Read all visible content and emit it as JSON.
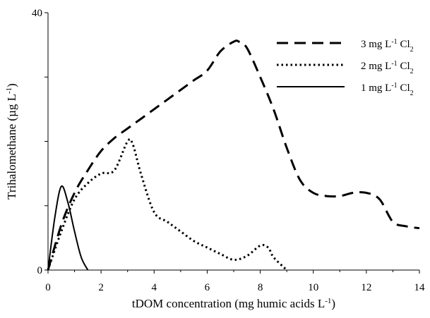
{
  "chart_data": {
    "type": "line",
    "xlabel": "tDOM concentration (mg humic acids L",
    "xlabel_sup": "-1",
    "xlabel_tail": ")",
    "ylabel": "Trihalomethane (µg L",
    "ylabel_sup": "-1",
    "ylabel_tail": ")",
    "xlim": [
      0,
      14
    ],
    "ylim": [
      0,
      40
    ],
    "x_ticks": [
      0,
      2,
      4,
      6,
      8,
      10,
      12,
      14
    ],
    "y_ticks": [
      0,
      40
    ],
    "grid": false,
    "legend_position": "top-right",
    "series": [
      {
        "name": "3 mg L-1 Cl2",
        "legend": {
          "pre": "3 mg L",
          "sup": "-1",
          "mid": " Cl",
          "sub": "2"
        },
        "style": "dashed",
        "x": [
          0,
          0.5,
          1,
          1.5,
          2,
          2.5,
          3,
          3.5,
          4,
          4.5,
          5,
          5.5,
          6,
          6.5,
          7,
          7.2,
          7.5,
          8,
          8.5,
          9,
          9.5,
          10,
          10.5,
          11,
          11.5,
          12,
          12.5,
          13,
          13.5,
          14
        ],
        "y": [
          0,
          7,
          12,
          15.5,
          18.5,
          20.5,
          22,
          23.5,
          25,
          26.5,
          28,
          29.5,
          31,
          34,
          35.5,
          35.5,
          34.5,
          30,
          25,
          19,
          14,
          12,
          11.5,
          11.5,
          12,
          12,
          11,
          7.5,
          6.8,
          6.5
        ]
      },
      {
        "name": "2 mg L-1 Cl2",
        "legend": {
          "pre": "2 mg L",
          "sup": "-1",
          "mid": " Cl",
          "sub": "2"
        },
        "style": "dotted",
        "x": [
          0,
          0.5,
          1,
          1.5,
          2,
          2.5,
          3,
          3.2,
          3.5,
          4,
          4.5,
          5,
          5.5,
          6,
          6.5,
          7,
          7.5,
          8,
          8.3,
          8.5,
          9
        ],
        "y": [
          0,
          6,
          11,
          13.5,
          15,
          15.5,
          20,
          19.5,
          15,
          9,
          7.5,
          6,
          4.5,
          3.5,
          2.5,
          1.6,
          2.2,
          3.8,
          3.5,
          2,
          0
        ]
      },
      {
        "name": "1 mg L-1 Cl2",
        "legend": {
          "pre": "1 mg L",
          "sup": "-1",
          "mid": " Cl",
          "sub": "2"
        },
        "style": "solid",
        "x": [
          0,
          0.25,
          0.5,
          0.75,
          1,
          1.25,
          1.5
        ],
        "y": [
          0,
          8,
          13,
          10.5,
          6,
          2,
          0
        ]
      }
    ]
  }
}
